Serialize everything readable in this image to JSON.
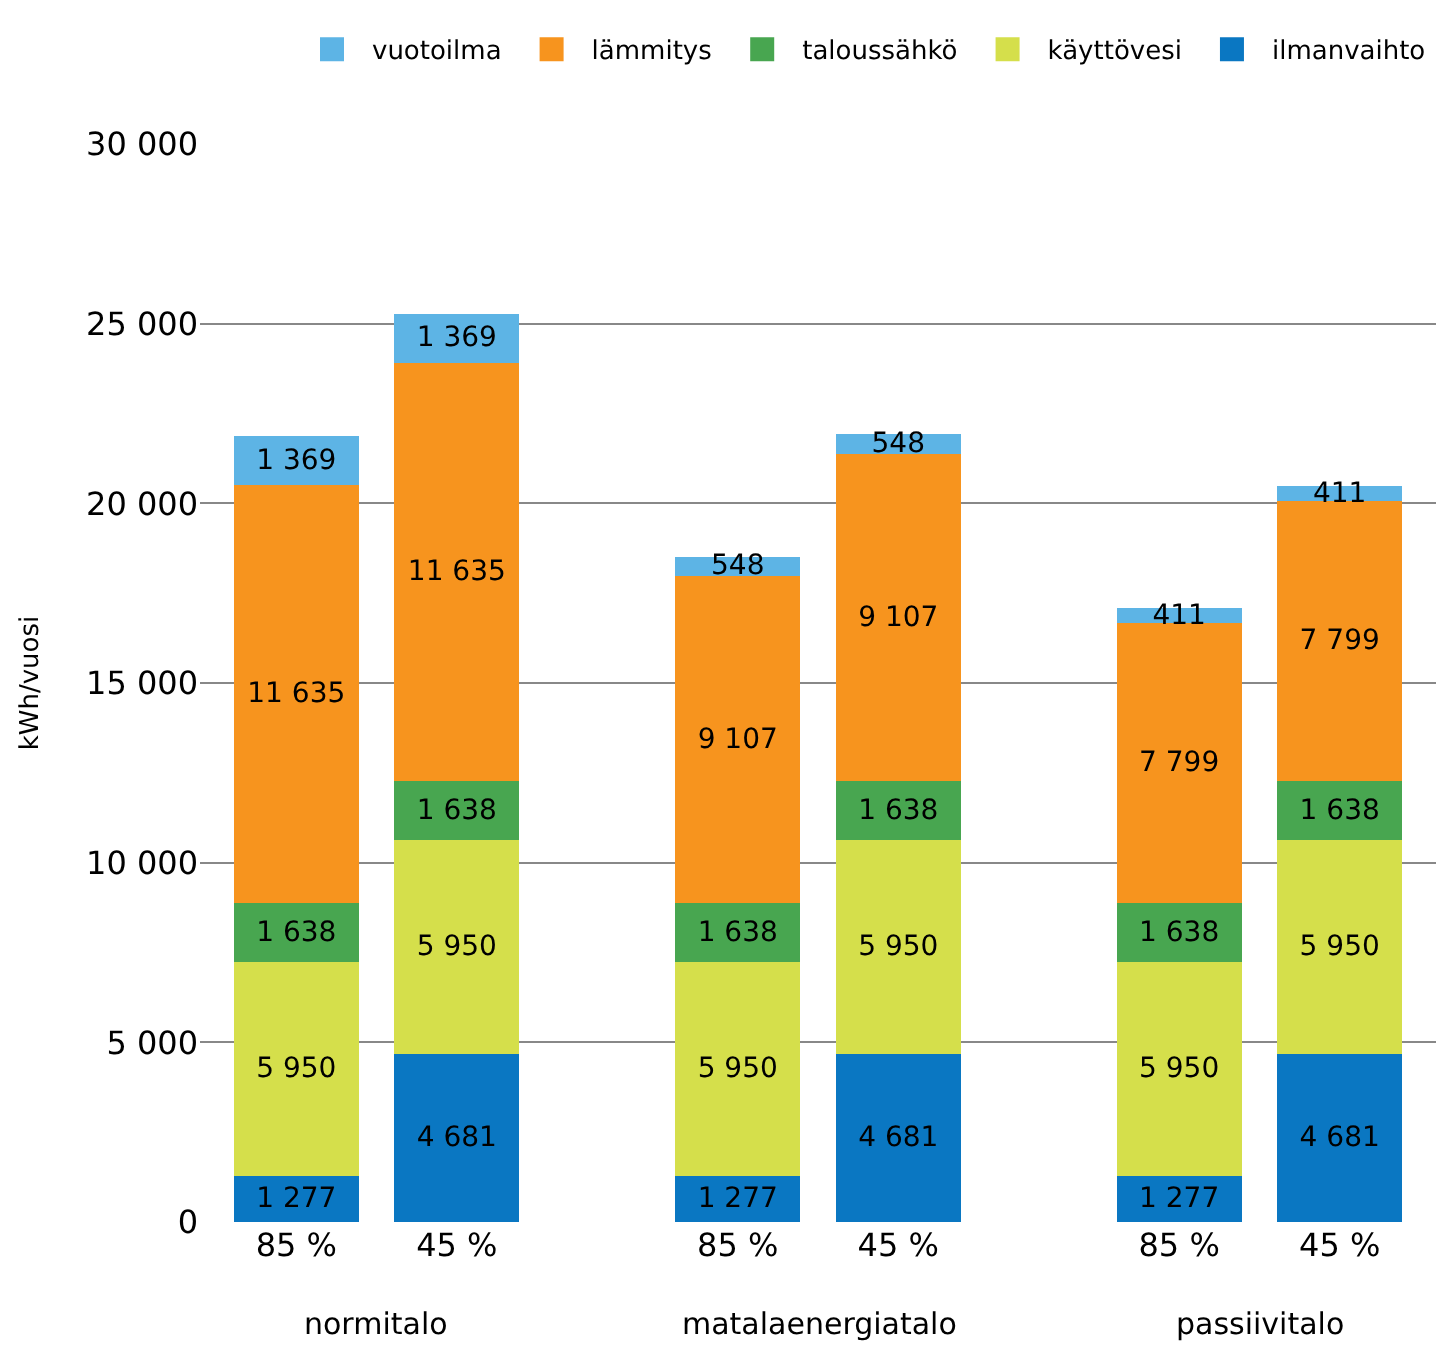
{
  "chart_data": {
    "type": "bar",
    "stacked": true,
    "ylabel": "kWh/vuosi",
    "categories": [
      "85 %",
      "45 %",
      "85 %",
      "45 %",
      "85 %",
      "45 %"
    ],
    "annotations": [
      "normitalo",
      "matalaenergiatalo",
      "passiivitalo"
    ],
    "ylim": [
      0,
      30000
    ],
    "yticks": [
      0,
      {
        "value": 5000,
        "label": "5 000"
      },
      {
        "value": 10000,
        "label": "10 000"
      },
      {
        "value": 15000,
        "label": "15 000"
      },
      {
        "value": 20000,
        "label": "20 000"
      },
      {
        "value": 25000,
        "label": "25 000"
      },
      {
        "value": 30000,
        "label": "30 000"
      }
    ],
    "grid": "y",
    "legend": "top right",
    "series": [
      {
        "name": "ilmanvaihto",
        "color": "#0a77c2",
        "values": [
          1277,
          4681,
          1277,
          4681,
          1277,
          4681
        ],
        "value_labels": [
          "1 277",
          "4 681",
          "1 277",
          "4 681",
          "1 277",
          "4 681"
        ]
      },
      {
        "name": "käyttövesi",
        "color": "#d5df4b",
        "values": [
          5950,
          5950,
          5950,
          5950,
          5950,
          5950
        ],
        "value_labels": [
          "5 950",
          "5 950",
          "5 950",
          "5 950",
          "5 950",
          "5 950"
        ]
      },
      {
        "name": "taloussähkö",
        "color": "#48a650",
        "values": [
          1638,
          1638,
          1638,
          1638,
          1638,
          1638
        ],
        "value_labels": [
          "1 638",
          "1 638",
          "1 638",
          "1 638",
          "1 638",
          "1 638"
        ]
      },
      {
        "name": "lämmitys",
        "color": "#f7941e",
        "values": [
          11635,
          11635,
          9107,
          9107,
          7799,
          7799
        ],
        "value_labels": [
          "11 635",
          "11 635",
          "9 107",
          "9 107",
          "7 799",
          "7 799"
        ]
      },
      {
        "name": "vuotoilma",
        "color": "#5db4e5",
        "values": [
          1369,
          1369,
          548,
          548,
          411,
          411
        ],
        "value_labels": [
          "1 369",
          "1 369",
          "548",
          "548",
          "411",
          "411"
        ]
      }
    ]
  }
}
